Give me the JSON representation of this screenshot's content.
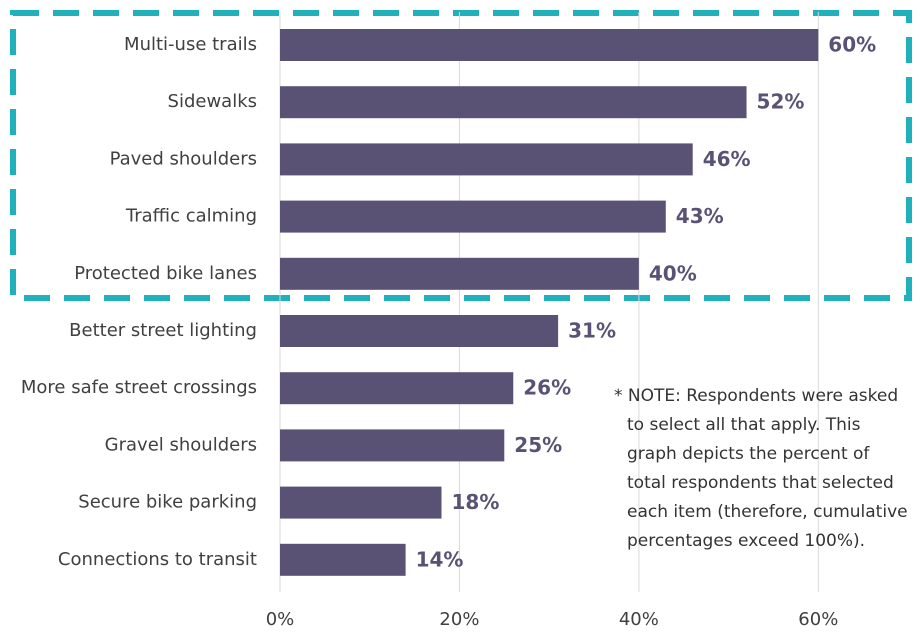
{
  "chart_data": {
    "type": "bar",
    "orientation": "horizontal",
    "categories": [
      "Multi-use trails",
      "Sidewalks",
      "Paved shoulders",
      "Traffic calming",
      "Protected bike lanes",
      "Better street lighting",
      "More safe street crossings",
      "Gravel shoulders",
      "Secure bike parking",
      "Connections to transit"
    ],
    "values": [
      60,
      52,
      46,
      43,
      40,
      31,
      26,
      25,
      18,
      14
    ],
    "value_labels": [
      "60%",
      "52%",
      "46%",
      "43%",
      "40%",
      "31%",
      "26%",
      "25%",
      "18%",
      "14%"
    ],
    "color": "#5a5275",
    "xlim": [
      0,
      71
    ],
    "xticks": [
      {
        "value": 0,
        "label": "0%"
      },
      {
        "value": 20,
        "label": "20%"
      },
      {
        "value": 40,
        "label": "40%"
      },
      {
        "value": 60,
        "label": "60%"
      }
    ],
    "grid": true,
    "note": [
      "* NOTE: Respondents were asked",
      "to select all that apply. This",
      "graph depicts the percent of",
      "total respondents that selected",
      "each item (therefore, cumulative",
      "percentages exceed 100%)."
    ]
  }
}
